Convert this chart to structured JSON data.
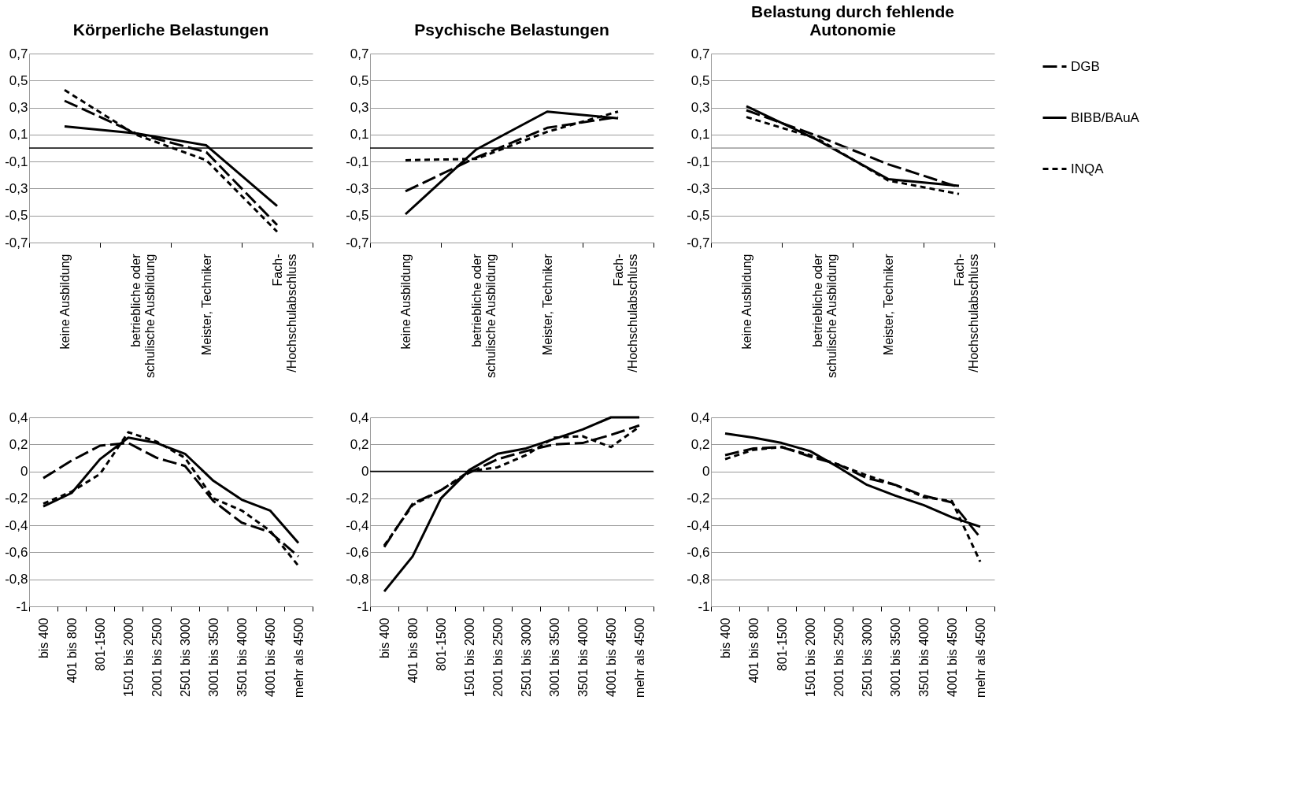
{
  "chart_data": [
    {
      "type": "line",
      "title": "Körperliche Belastungen",
      "categories": [
        "keine Ausbildung",
        "betriebliche oder schulische Ausbildung",
        "Meister, Techniker",
        "Fach-/Hochschulabschluss"
      ],
      "series": [
        {
          "color": "#000000",
          "line_style": "dashed",
          "values": [
            0.35,
            0.11,
            -0.03,
            -0.57
          ]
        },
        {
          "color": "#000000",
          "line_style": "solid",
          "values": [
            0.16,
            0.11,
            0.02,
            -0.43
          ]
        },
        {
          "color": "#000000",
          "line_style": "dotted",
          "values": [
            0.43,
            0.1,
            -0.09,
            -0.62
          ]
        }
      ],
      "ylim": [
        -0.7,
        0.7
      ],
      "yticks": [
        {
          "value": 0.7,
          "label": "0,7"
        },
        {
          "value": 0.5,
          "label": "0,5"
        },
        {
          "value": 0.3,
          "label": "0,3"
        },
        {
          "value": 0.1,
          "label": "0,1"
        },
        {
          "value": -0.1,
          "label": "-0,1"
        },
        {
          "value": -0.3,
          "label": "-0,3"
        },
        {
          "value": -0.5,
          "label": "-0,5"
        },
        {
          "value": -0.7,
          "label": "-0,7"
        }
      ],
      "grid": "y",
      "ref_lines": [
        {
          "axis": "y",
          "value": 0,
          "color": "#000000"
        }
      ]
    },
    {
      "type": "line",
      "title": "Psychische Belastungen",
      "categories": [
        "keine Ausbildung",
        "betriebliche oder schulische Ausbildung",
        "Meister, Techniker",
        "Fach-/Hochschulabschluss"
      ],
      "series": [
        {
          "color": "#000000",
          "line_style": "dashed",
          "values": [
            -0.32,
            -0.07,
            0.15,
            0.23
          ]
        },
        {
          "color": "#000000",
          "line_style": "solid",
          "values": [
            -0.49,
            -0.01,
            0.27,
            0.22
          ]
        },
        {
          "color": "#000000",
          "line_style": "dotted",
          "values": [
            -0.09,
            -0.08,
            0.12,
            0.27
          ]
        }
      ],
      "ylim": [
        -0.7,
        0.7
      ],
      "yticks": [
        {
          "value": 0.7,
          "label": "0,7"
        },
        {
          "value": 0.5,
          "label": "0,5"
        },
        {
          "value": 0.3,
          "label": "0,3"
        },
        {
          "value": 0.1,
          "label": "0,1"
        },
        {
          "value": -0.1,
          "label": "-0,1"
        },
        {
          "value": -0.3,
          "label": "-0,3"
        },
        {
          "value": -0.5,
          "label": "-0,5"
        },
        {
          "value": -0.7,
          "label": "-0,7"
        }
      ],
      "grid": "y",
      "ref_lines": [
        {
          "axis": "y",
          "value": 0,
          "color": "#000000"
        }
      ]
    },
    {
      "type": "line",
      "title": "Belastung durch fehlende Autonomie",
      "categories": [
        "keine Ausbildung",
        "betriebliche oder schulische Ausbildung",
        "Meister, Techniker",
        "Fach-/Hochschulabschluss"
      ],
      "series": [
        {
          "name": "DGB",
          "color": "#000000",
          "line_style": "dashed",
          "values": [
            0.28,
            0.09,
            -0.12,
            -0.29
          ]
        },
        {
          "name": "BIBB/BAuA",
          "color": "#000000",
          "line_style": "solid",
          "values": [
            0.31,
            0.06,
            -0.23,
            -0.28
          ]
        },
        {
          "name": "INQA",
          "color": "#000000",
          "line_style": "dotted",
          "values": [
            0.23,
            0.07,
            -0.24,
            -0.34
          ]
        }
      ],
      "ylim": [
        -0.7,
        0.7
      ],
      "yticks": [
        {
          "value": 0.7,
          "label": "0,7"
        },
        {
          "value": 0.5,
          "label": "0,5"
        },
        {
          "value": 0.3,
          "label": "0,3"
        },
        {
          "value": 0.1,
          "label": "0,1"
        },
        {
          "value": -0.1,
          "label": "-0,1"
        },
        {
          "value": -0.3,
          "label": "-0,3"
        },
        {
          "value": -0.5,
          "label": "-0,5"
        },
        {
          "value": -0.7,
          "label": "-0,7"
        }
      ],
      "grid": "y",
      "legend": "right",
      "ref_lines": [
        {
          "axis": "y",
          "value": 0,
          "color": "#9a9a9a"
        }
      ]
    },
    {
      "type": "line",
      "categories": [
        "bis 400",
        "401 bis 800",
        "801-1500",
        "1501 bis 2000",
        "2001 bis 2500",
        "2501 bis 3000",
        "3001 bis 3500",
        "3501 bis 4000",
        "4001 bis 4500",
        "mehr als 4500"
      ],
      "series": [
        {
          "color": "#000000",
          "line_style": "dashed",
          "values": [
            -0.05,
            0.08,
            0.19,
            0.21,
            0.1,
            0.04,
            -0.22,
            -0.38,
            -0.45,
            -0.63
          ]
        },
        {
          "color": "#000000",
          "line_style": "solid",
          "values": [
            -0.26,
            -0.16,
            0.09,
            0.25,
            0.21,
            0.13,
            -0.07,
            -0.21,
            -0.29,
            -0.53
          ]
        },
        {
          "color": "#000000",
          "line_style": "dotted",
          "values": [
            -0.24,
            -0.15,
            -0.02,
            0.29,
            0.22,
            0.1,
            -0.2,
            -0.29,
            -0.44,
            -0.7
          ]
        }
      ],
      "ylim": [
        -1,
        0.4
      ],
      "yticks": [
        {
          "value": 0.4,
          "label": "0,4"
        },
        {
          "value": 0.2,
          "label": "0,2"
        },
        0,
        {
          "value": -0.2,
          "label": "-0,2"
        },
        {
          "value": -0.4,
          "label": "-0,4"
        },
        {
          "value": -0.6,
          "label": "-0,6"
        },
        {
          "value": -0.8,
          "label": "-0,8"
        },
        -1
      ],
      "grid": "y"
    },
    {
      "type": "line",
      "categories": [
        "bis 400",
        "401 bis 800",
        "801-1500",
        "1501 bis 2000",
        "2001 bis 2500",
        "2501 bis 3000",
        "3001 bis 3500",
        "3501 bis 4000",
        "4001 bis 4500",
        "mehr als 4500"
      ],
      "series": [
        {
          "color": "#000000",
          "line_style": "dashed",
          "values": [
            -0.56,
            -0.24,
            -0.14,
            -0.01,
            0.09,
            0.15,
            0.2,
            0.21,
            0.27,
            0.34
          ]
        },
        {
          "color": "#000000",
          "line_style": "solid",
          "values": [
            -0.89,
            -0.63,
            -0.2,
            0.01,
            0.13,
            0.17,
            0.24,
            0.31,
            0.4,
            0.4
          ]
        },
        {
          "color": "#000000",
          "line_style": "dotted",
          "values": [
            -0.55,
            -0.25,
            -0.14,
            0.0,
            0.03,
            0.12,
            0.25,
            0.26,
            0.18,
            0.33
          ]
        }
      ],
      "ylim": [
        -1,
        0.4
      ],
      "yticks": [
        {
          "value": 0.4,
          "label": "0,4"
        },
        {
          "value": 0.2,
          "label": "0,2"
        },
        0,
        {
          "value": -0.2,
          "label": "-0,2"
        },
        {
          "value": -0.4,
          "label": "-0,4"
        },
        {
          "value": -0.6,
          "label": "-0,6"
        },
        {
          "value": -0.8,
          "label": "-0,8"
        },
        -1
      ],
      "grid": "y",
      "ref_lines": [
        {
          "axis": "y",
          "value": 0,
          "color": "#000000"
        }
      ]
    },
    {
      "type": "line",
      "categories": [
        "bis 400",
        "401 bis 800",
        "801-1500",
        "1501 bis 2000",
        "2001 bis 2500",
        "2501 bis 3000",
        "3001 bis 3500",
        "3501 bis 4000",
        "4001 bis 4500",
        "mehr als 4500"
      ],
      "series": [
        {
          "color": "#000000",
          "line_style": "dashed",
          "values": [
            0.12,
            0.17,
            0.18,
            0.11,
            0.05,
            -0.05,
            -0.1,
            -0.18,
            -0.23,
            -0.49
          ]
        },
        {
          "color": "#000000",
          "line_style": "solid",
          "values": [
            0.28,
            0.25,
            0.21,
            0.15,
            0.03,
            -0.1,
            -0.18,
            -0.25,
            -0.34,
            -0.41
          ]
        },
        {
          "color": "#000000",
          "line_style": "dotted",
          "values": [
            0.09,
            0.16,
            0.18,
            0.12,
            0.05,
            -0.03,
            -0.1,
            -0.19,
            -0.22,
            -0.67
          ]
        }
      ],
      "ylim": [
        -1,
        0.4
      ],
      "yticks": [
        {
          "value": 0.4,
          "label": "0,4"
        },
        {
          "value": 0.2,
          "label": "0,2"
        },
        0,
        {
          "value": -0.2,
          "label": "-0,2"
        },
        {
          "value": -0.4,
          "label": "-0,4"
        },
        {
          "value": -0.6,
          "label": "-0,6"
        },
        {
          "value": -0.8,
          "label": "-0,8"
        },
        -1
      ],
      "grid": "y"
    }
  ]
}
